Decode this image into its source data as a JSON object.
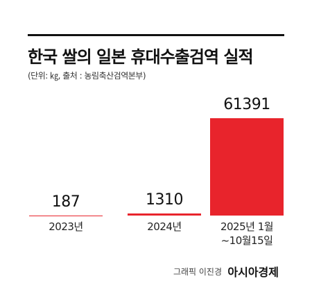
{
  "chart_data": {
    "type": "bar",
    "title": "한국 쌀의 일본 휴대수출검역 실적",
    "subtitle": "(단위: ㎏, 출처 : 농림축산검역본부)",
    "categories": [
      "2023년",
      "2024년",
      "2025년 1월\n~10월15일"
    ],
    "values": [
      187,
      1310,
      61391
    ],
    "color": "#e8242c",
    "credit": "그래픽 이진경",
    "source": "아시아경제"
  }
}
